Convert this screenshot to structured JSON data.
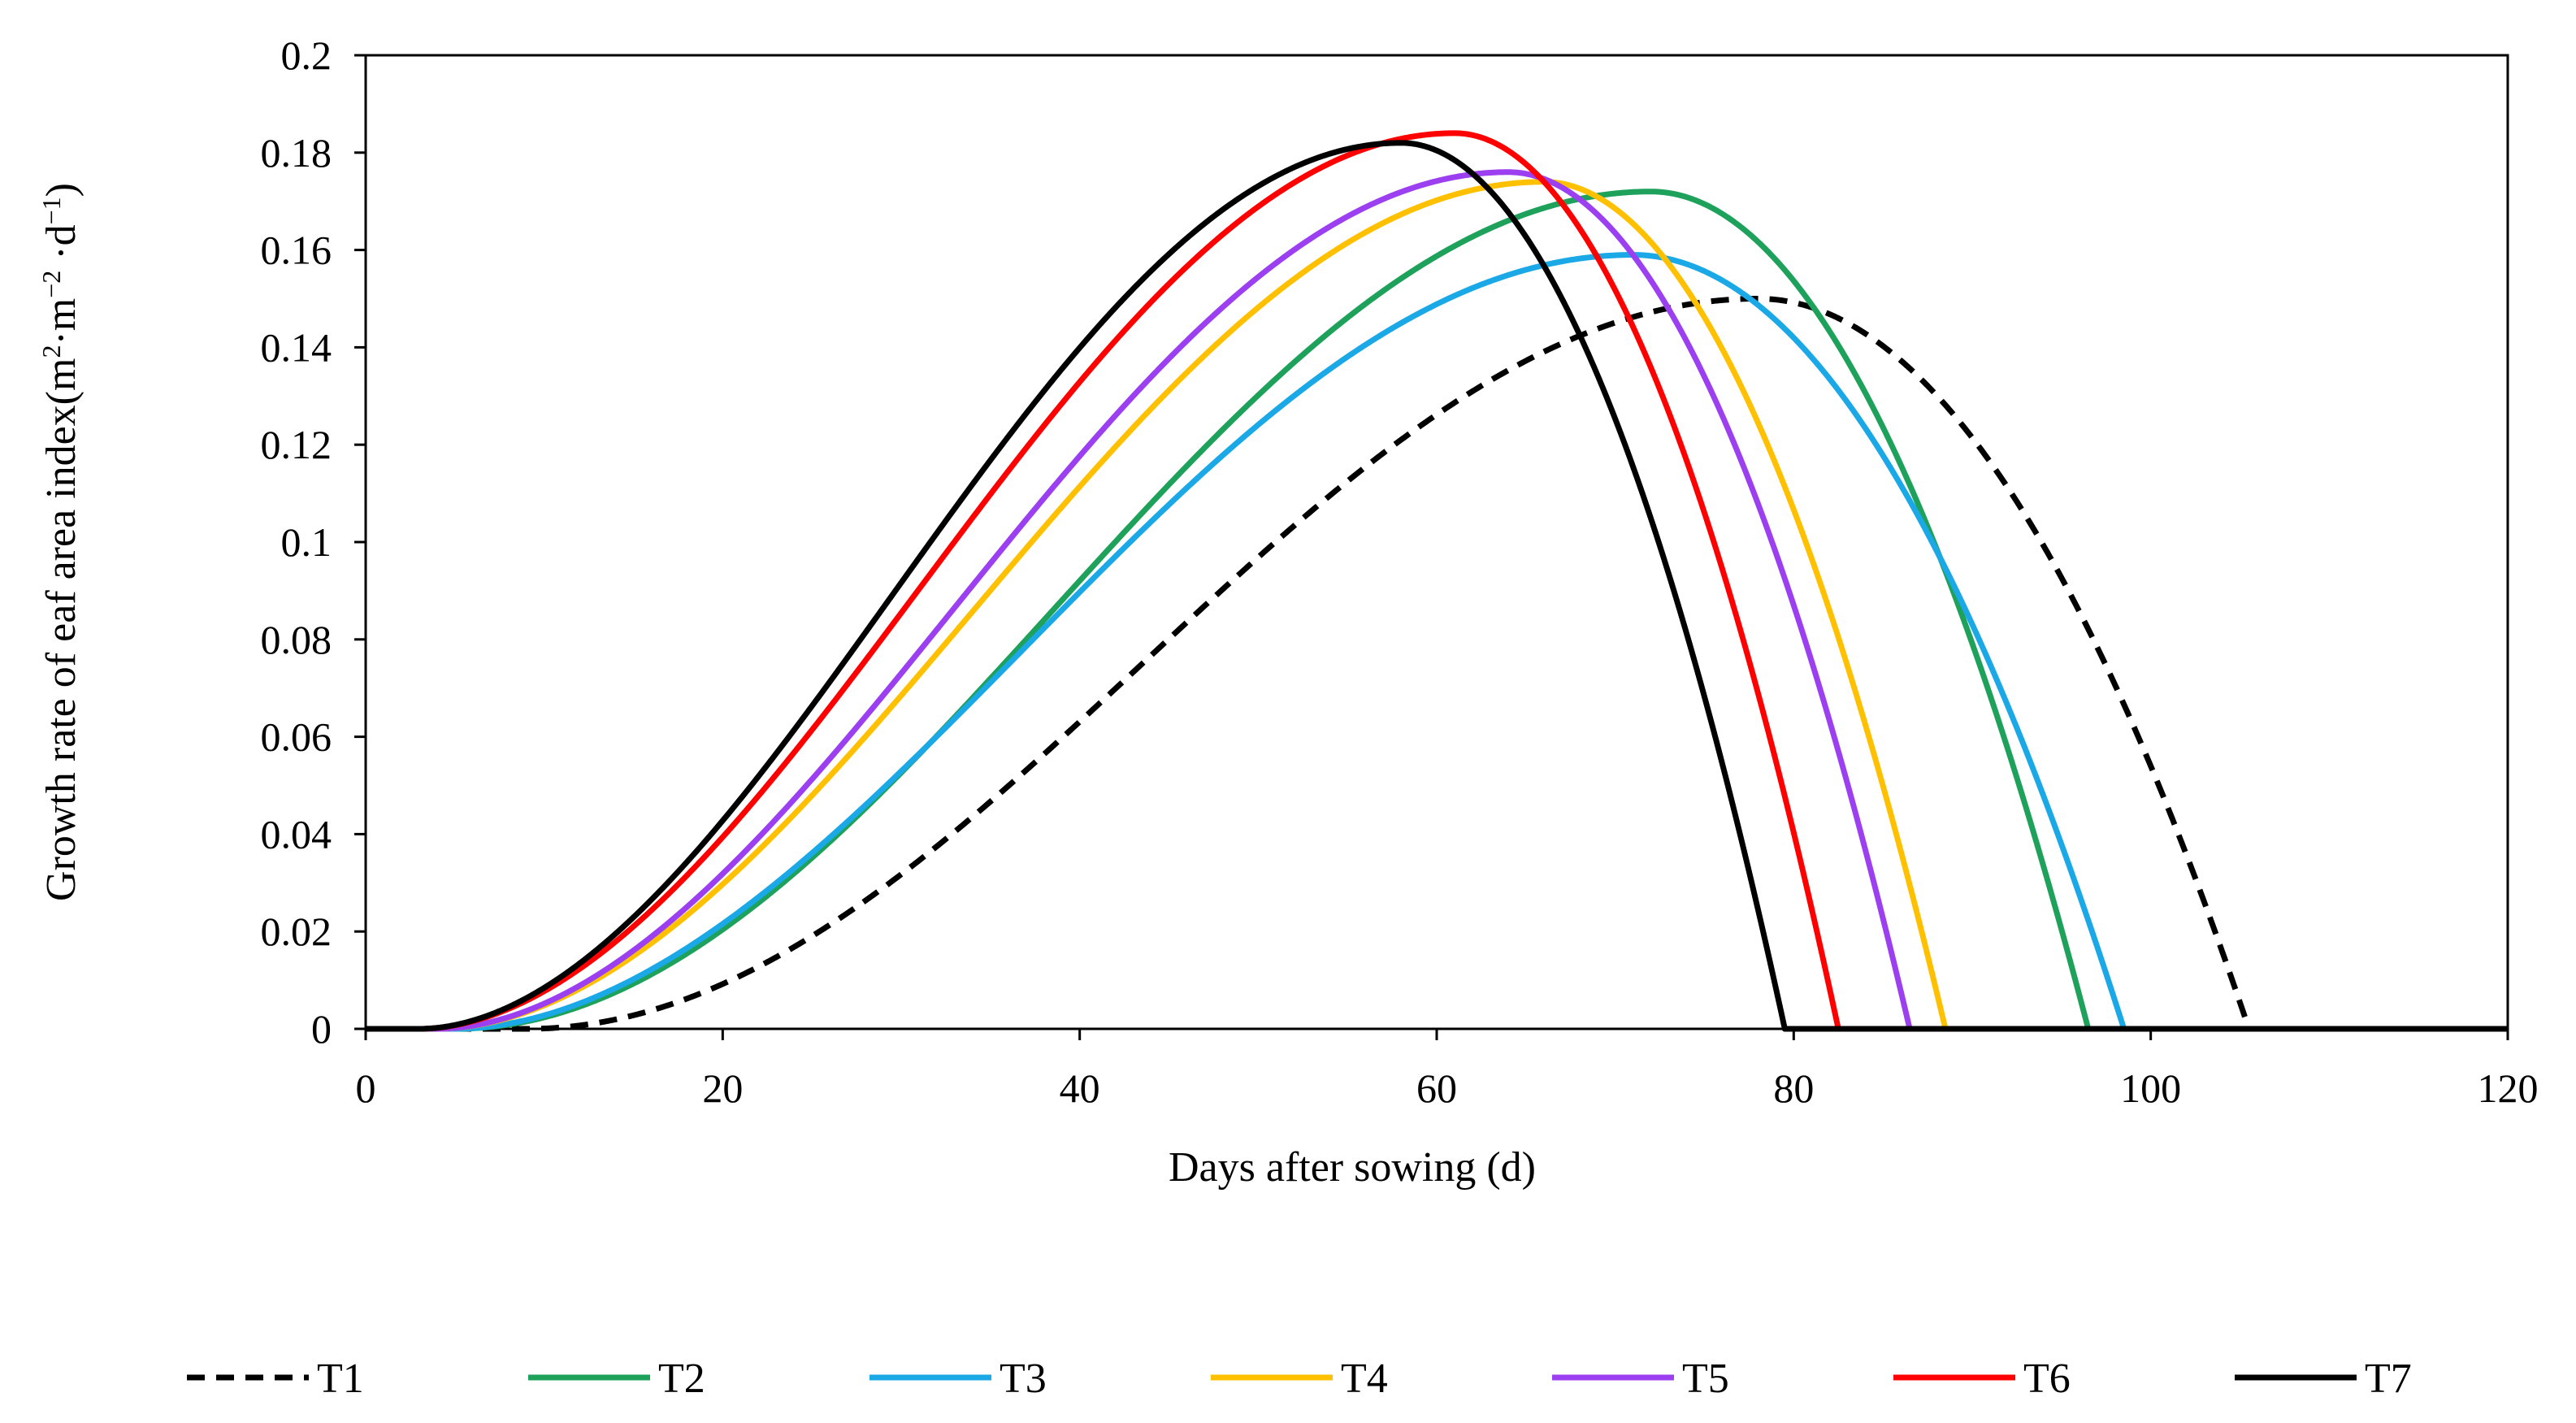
{
  "chart_data": {
    "type": "line",
    "title": "",
    "xlabel": "Days after sowing (d)",
    "ylabel": {
      "main": "Growth rate of eaf area index(m",
      "sup1": "2",
      "dot": "·",
      "mid": "m",
      "sup2": "−2",
      "tail": " ·d",
      "sup3": "−1",
      "end": ")"
    },
    "xlim": [
      0,
      120
    ],
    "ylim": [
      0,
      0.2
    ],
    "xticks": [
      0,
      20,
      40,
      60,
      80,
      100,
      120
    ],
    "xtick_labels": [
      "0",
      "20",
      "40",
      "60",
      "80",
      "100",
      "120"
    ],
    "yticks": [
      0,
      0.02,
      0.04,
      0.06,
      0.08,
      0.1,
      0.12,
      0.14,
      0.16,
      0.18,
      0.2
    ],
    "ytick_labels": [
      "0",
      "0.02",
      "0.04",
      "0.06",
      "0.08",
      "0.1",
      "0.12",
      "0.14",
      "0.16",
      "0.18",
      "0.2"
    ],
    "grid": false,
    "legend_position": "bottom",
    "series": [
      {
        "name": "T1",
        "color": "#000000",
        "dashed": true,
        "start": 9,
        "peak_x": 78,
        "peak_y": 0.15,
        "end": 105.5,
        "rise_k": 2.0
      },
      {
        "name": "T2",
        "color": "#1ea15a",
        "dashed": false,
        "start": 5,
        "peak_x": 72,
        "peak_y": 0.172,
        "end": 96.5,
        "rise_k": 2.0
      },
      {
        "name": "T3",
        "color": "#1aa9e6",
        "dashed": false,
        "start": 5,
        "peak_x": 71,
        "peak_y": 0.159,
        "end": 98.5,
        "rise_k": 1.9
      },
      {
        "name": "T4",
        "color": "#ffc000",
        "dashed": false,
        "start": 4,
        "peak_x": 66,
        "peak_y": 0.174,
        "end": 88.5,
        "rise_k": 1.9
      },
      {
        "name": "T5",
        "color": "#9b3ff0",
        "dashed": false,
        "start": 4,
        "peak_x": 64,
        "peak_y": 0.176,
        "end": 86.5,
        "rise_k": 1.9
      },
      {
        "name": "T6",
        "color": "#ff0000",
        "dashed": false,
        "start": 3,
        "peak_x": 61,
        "peak_y": 0.184,
        "end": 82.5,
        "rise_k": 1.9
      },
      {
        "name": "T7",
        "color": "#000000",
        "dashed": false,
        "start": 3,
        "peak_x": 58,
        "peak_y": 0.182,
        "end": 79.5,
        "rise_k": 1.9
      }
    ]
  }
}
